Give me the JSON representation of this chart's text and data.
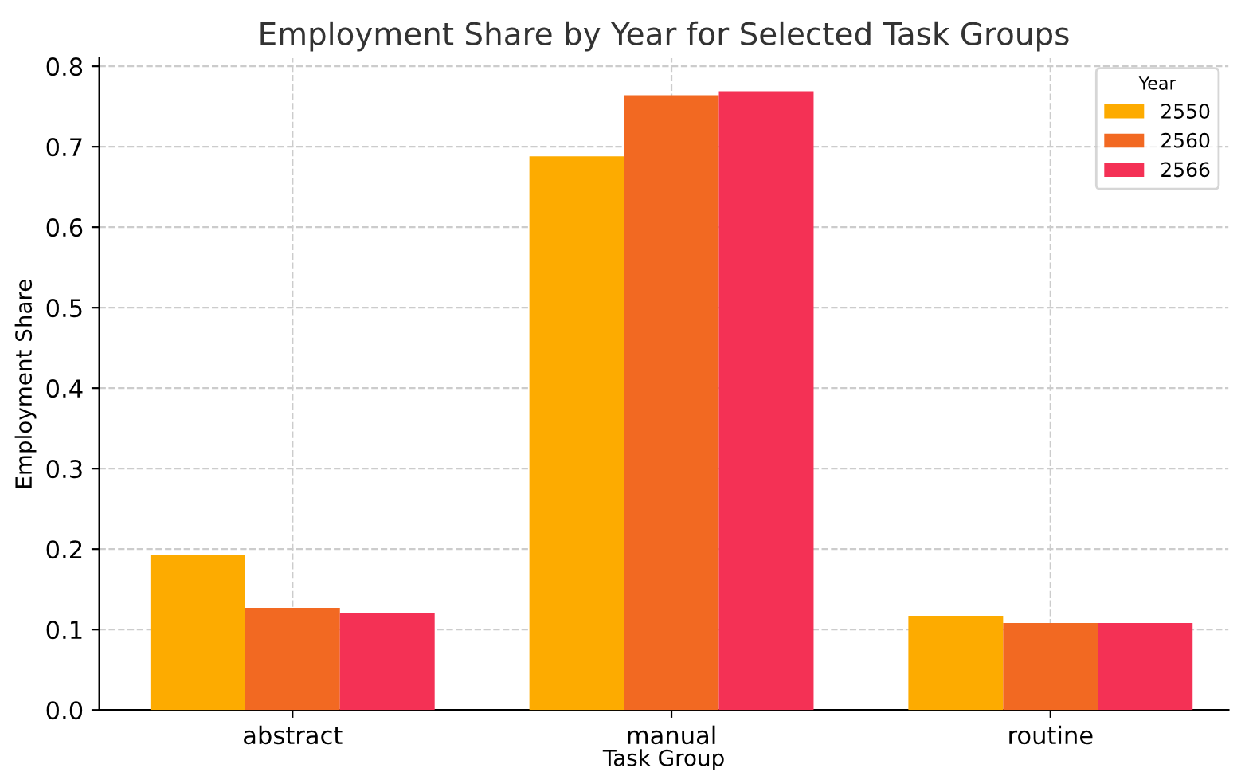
{
  "chart_data": {
    "type": "bar",
    "title": "Employment Share by Year for Selected Task Groups",
    "xlabel": "Task Group",
    "ylabel": "Employment Share",
    "legend_title": "Year",
    "categories": [
      "abstract",
      "manual",
      "routine"
    ],
    "series": [
      {
        "name": "2550",
        "color": "#fdab00",
        "values": [
          0.193,
          0.688,
          0.117
        ]
      },
      {
        "name": "2560",
        "color": "#f26922",
        "values": [
          0.127,
          0.764,
          0.108
        ]
      },
      {
        "name": "2566",
        "color": "#f43155",
        "values": [
          0.121,
          0.769,
          0.108
        ]
      }
    ],
    "ylim": [
      0,
      0.81
    ],
    "yticks": [
      {
        "value": 0,
        "label": "0.0"
      },
      0.1,
      0.2,
      0.3,
      0.4,
      0.5,
      0.6,
      0.7,
      0.8
    ],
    "grid": true,
    "legend": "top right"
  }
}
